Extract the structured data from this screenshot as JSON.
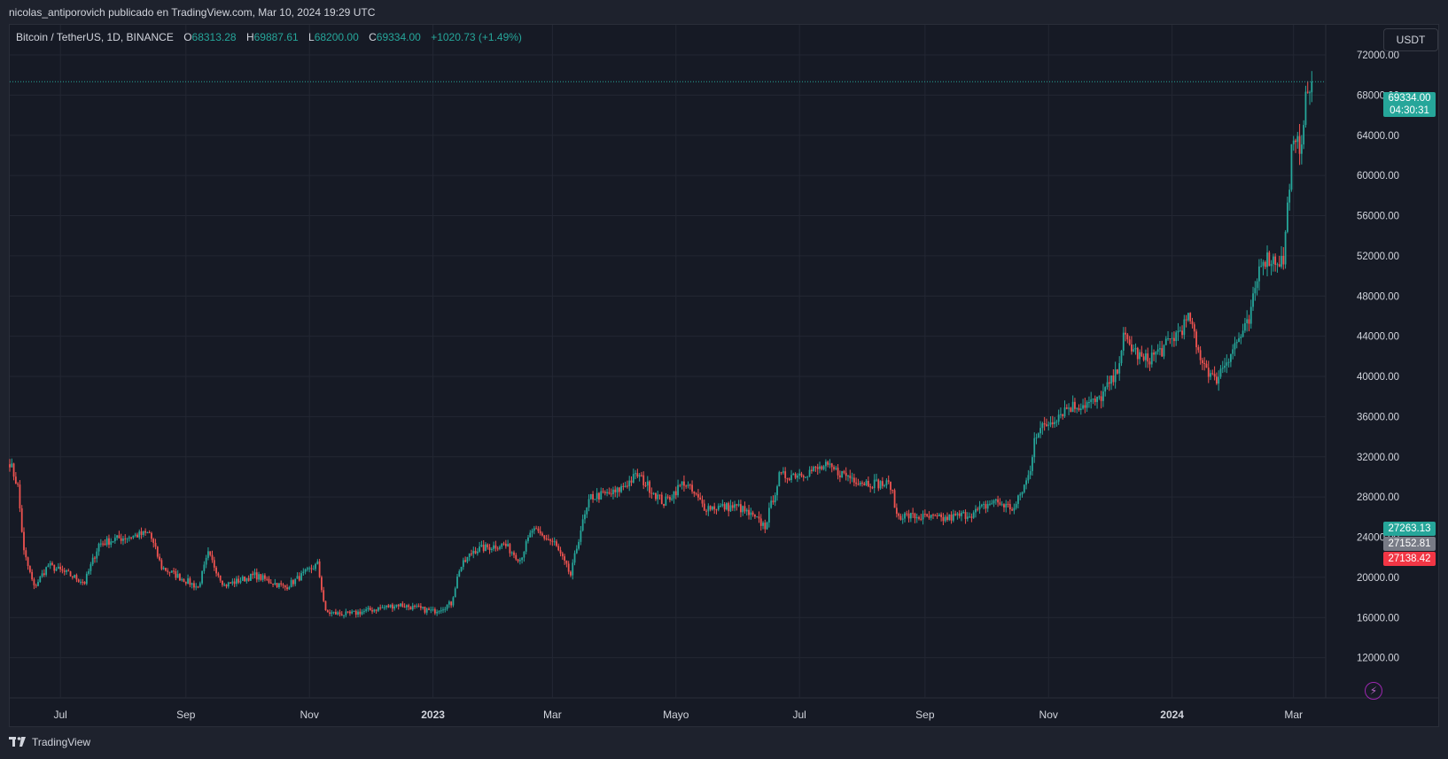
{
  "header": {
    "published_by": "nicolas_antiporovich publicado en TradingView.com, Mar 10, 2024 19:29 UTC"
  },
  "legend": {
    "symbol": "Bitcoin / TetherUS, 1D, BINANCE",
    "open_label": "O",
    "open": "68313.28",
    "high_label": "H",
    "high": "69887.61",
    "low_label": "L",
    "low": "68200.00",
    "close_label": "C",
    "close": "69334.00",
    "change": "+1020.73 (+1.49%)"
  },
  "currency_button": "USDT",
  "footer": {
    "brand": "TradingView"
  },
  "badges": {
    "last_price": "69334.00",
    "countdown": "04:30:31",
    "level_green": "27263.13",
    "level_gray": "27152.81",
    "level_red": "27138.42"
  },
  "colors": {
    "up": "#26a69a",
    "down": "#ef5350",
    "background": "#161a25",
    "grid": "#232733",
    "text": "#d1d4dc",
    "gray_badge": "#787b86"
  },
  "chart_data": {
    "type": "candlestick",
    "ylim": [
      8000,
      75000
    ],
    "y_ticks": [
      "12000.00",
      "16000.00",
      "20000.00",
      "24000.00",
      "28000.00",
      "32000.00",
      "36000.00",
      "40000.00",
      "44000.00",
      "48000.00",
      "52000.00",
      "56000.00",
      "60000.00",
      "64000.00",
      "68000.00",
      "72000.00"
    ],
    "x_ticks": [
      {
        "label": "Jul",
        "date": "2022-07-01"
      },
      {
        "label": "Sep",
        "date": "2022-09-01"
      },
      {
        "label": "Nov",
        "date": "2022-11-01"
      },
      {
        "label": "2023",
        "date": "2023-01-01"
      },
      {
        "label": "Mar",
        "date": "2023-03-01"
      },
      {
        "label": "Mayo",
        "date": "2023-05-01"
      },
      {
        "label": "Jul",
        "date": "2023-07-01"
      },
      {
        "label": "Sep",
        "date": "2023-09-01"
      },
      {
        "label": "Nov",
        "date": "2023-11-01"
      },
      {
        "label": "2024",
        "date": "2024-01-01"
      },
      {
        "label": "Mar",
        "date": "2024-03-01"
      }
    ],
    "x_range": [
      "2022-06-06",
      "2024-03-16"
    ],
    "last_price": 69334.0,
    "price_key_points": [
      [
        "2022-06-06",
        31500
      ],
      [
        "2022-06-10",
        29000
      ],
      [
        "2022-06-13",
        22500
      ],
      [
        "2022-06-18",
        19000
      ],
      [
        "2022-06-25",
        21200
      ],
      [
        "2022-07-05",
        20300
      ],
      [
        "2022-07-13",
        19500
      ],
      [
        "2022-07-20",
        23300
      ],
      [
        "2022-07-28",
        23800
      ],
      [
        "2022-08-14",
        24400
      ],
      [
        "2022-08-20",
        21000
      ],
      [
        "2022-09-07",
        19000
      ],
      [
        "2022-09-12",
        22300
      ],
      [
        "2022-09-20",
        19200
      ],
      [
        "2022-10-05",
        20200
      ],
      [
        "2022-10-20",
        19000
      ],
      [
        "2022-11-05",
        21300
      ],
      [
        "2022-11-09",
        16500
      ],
      [
        "2022-11-20",
        16300
      ],
      [
        "2022-12-15",
        17300
      ],
      [
        "2023-01-01",
        16600
      ],
      [
        "2023-01-10",
        17400
      ],
      [
        "2023-01-14",
        20800
      ],
      [
        "2023-01-21",
        22700
      ],
      [
        "2023-02-05",
        23300
      ],
      [
        "2023-02-13",
        21800
      ],
      [
        "2023-02-19",
        24700
      ],
      [
        "2023-03-02",
        23400
      ],
      [
        "2023-03-10",
        20200
      ],
      [
        "2023-03-15",
        24800
      ],
      [
        "2023-03-20",
        28000
      ],
      [
        "2023-04-01",
        28400
      ],
      [
        "2023-04-12",
        30200
      ],
      [
        "2023-04-25",
        27400
      ],
      [
        "2023-05-05",
        29500
      ],
      [
        "2023-05-15",
        27000
      ],
      [
        "2023-06-01",
        27000
      ],
      [
        "2023-06-14",
        25100
      ],
      [
        "2023-06-21",
        30000
      ],
      [
        "2023-07-05",
        30500
      ],
      [
        "2023-07-14",
        31000
      ],
      [
        "2023-08-01",
        29500
      ],
      [
        "2023-08-15",
        29200
      ],
      [
        "2023-08-18",
        26200
      ],
      [
        "2023-09-10",
        25800
      ],
      [
        "2023-09-25",
        26400
      ],
      [
        "2023-10-05",
        27600
      ],
      [
        "2023-10-15",
        26800
      ],
      [
        "2023-10-23",
        30500
      ],
      [
        "2023-10-25",
        34200
      ],
      [
        "2023-11-10",
        36900
      ],
      [
        "2023-11-25",
        37500
      ],
      [
        "2023-12-04",
        40000
      ],
      [
        "2023-12-08",
        43800
      ],
      [
        "2023-12-18",
        41500
      ],
      [
        "2023-12-28",
        42800
      ],
      [
        "2024-01-10",
        45800
      ],
      [
        "2024-01-13",
        42800
      ],
      [
        "2024-01-22",
        39500
      ],
      [
        "2024-01-31",
        42800
      ],
      [
        "2024-02-08",
        45300
      ],
      [
        "2024-02-14",
        51800
      ],
      [
        "2024-02-25",
        51500
      ],
      [
        "2024-02-27",
        56800
      ],
      [
        "2024-02-29",
        62400
      ],
      [
        "2024-03-04",
        63100
      ],
      [
        "2024-03-05",
        63800
      ],
      [
        "2024-03-06",
        66100
      ],
      [
        "2024-03-08",
        68300
      ],
      [
        "2024-03-10",
        69334
      ]
    ]
  }
}
